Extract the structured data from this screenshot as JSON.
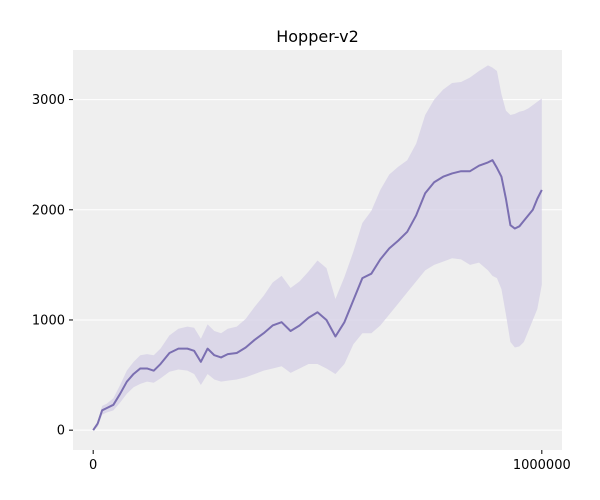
{
  "chart_data": {
    "type": "line",
    "title": "Hopper-v2",
    "xlabel": "",
    "ylabel": "",
    "xlim": [
      -45000,
      1045000
    ],
    "ylim": [
      -180,
      3450
    ],
    "x_ticks": [
      0,
      1000000
    ],
    "x_tick_labels": [
      "0",
      "1000000"
    ],
    "y_ticks": [
      0,
      1000,
      2000,
      3000
    ],
    "y_tick_labels": [
      "0",
      "1000",
      "2000",
      "3000"
    ],
    "grid": "horizontal",
    "legend": "none",
    "colors": {
      "background": "#efefef",
      "grid": "#ffffff",
      "line": "#7b6fb1",
      "band": "#d4cfe6"
    },
    "series": [
      {
        "x": [
          0,
          10000,
          20000,
          30000,
          45000,
          60000,
          75000,
          90000,
          105000,
          120000,
          135000,
          150000,
          170000,
          190000,
          210000,
          225000,
          240000,
          255000,
          270000,
          285000,
          300000,
          320000,
          340000,
          360000,
          380000,
          400000,
          420000,
          440000,
          460000,
          480000,
          500000,
          520000,
          540000,
          560000,
          580000,
          600000,
          620000,
          640000,
          660000,
          680000,
          700000,
          720000,
          740000,
          760000,
          780000,
          800000,
          820000,
          840000,
          860000,
          880000,
          890000,
          900000,
          910000,
          920000,
          930000,
          940000,
          950000,
          960000,
          970000,
          980000,
          990000,
          1000000
        ],
        "y": [
          0,
          60,
          180,
          200,
          230,
          330,
          440,
          510,
          560,
          560,
          540,
          600,
          700,
          740,
          740,
          720,
          620,
          740,
          680,
          660,
          690,
          700,
          750,
          820,
          880,
          950,
          980,
          900,
          950,
          1020,
          1070,
          1000,
          850,
          980,
          1180,
          1380,
          1420,
          1550,
          1650,
          1720,
          1800,
          1950,
          2150,
          2250,
          2300,
          2330,
          2350,
          2350,
          2400,
          2430,
          2450,
          2380,
          2300,
          2100,
          1860,
          1830,
          1850,
          1900,
          1950,
          2000,
          2100,
          2180
        ],
        "lower": [
          0,
          30,
          140,
          160,
          180,
          250,
          330,
          390,
          420,
          440,
          430,
          470,
          530,
          550,
          540,
          510,
          410,
          510,
          460,
          440,
          450,
          460,
          480,
          510,
          540,
          560,
          580,
          520,
          560,
          600,
          600,
          560,
          510,
          600,
          780,
          880,
          880,
          950,
          1050,
          1150,
          1250,
          1350,
          1450,
          1500,
          1530,
          1560,
          1550,
          1500,
          1520,
          1450,
          1400,
          1380,
          1280,
          1050,
          800,
          750,
          760,
          800,
          900,
          1000,
          1100,
          1320
        ],
        "upper": [
          0,
          80,
          220,
          240,
          290,
          410,
          540,
          620,
          680,
          690,
          680,
          740,
          860,
          920,
          940,
          930,
          830,
          960,
          900,
          880,
          920,
          940,
          1010,
          1120,
          1220,
          1340,
          1400,
          1290,
          1350,
          1440,
          1540,
          1470,
          1190,
          1390,
          1620,
          1880,
          1990,
          2180,
          2320,
          2390,
          2450,
          2600,
          2860,
          3000,
          3090,
          3150,
          3160,
          3200,
          3260,
          3310,
          3290,
          3260,
          3050,
          2900,
          2860,
          2870,
          2890,
          2900,
          2920,
          2950,
          2980,
          3010
        ]
      }
    ]
  }
}
